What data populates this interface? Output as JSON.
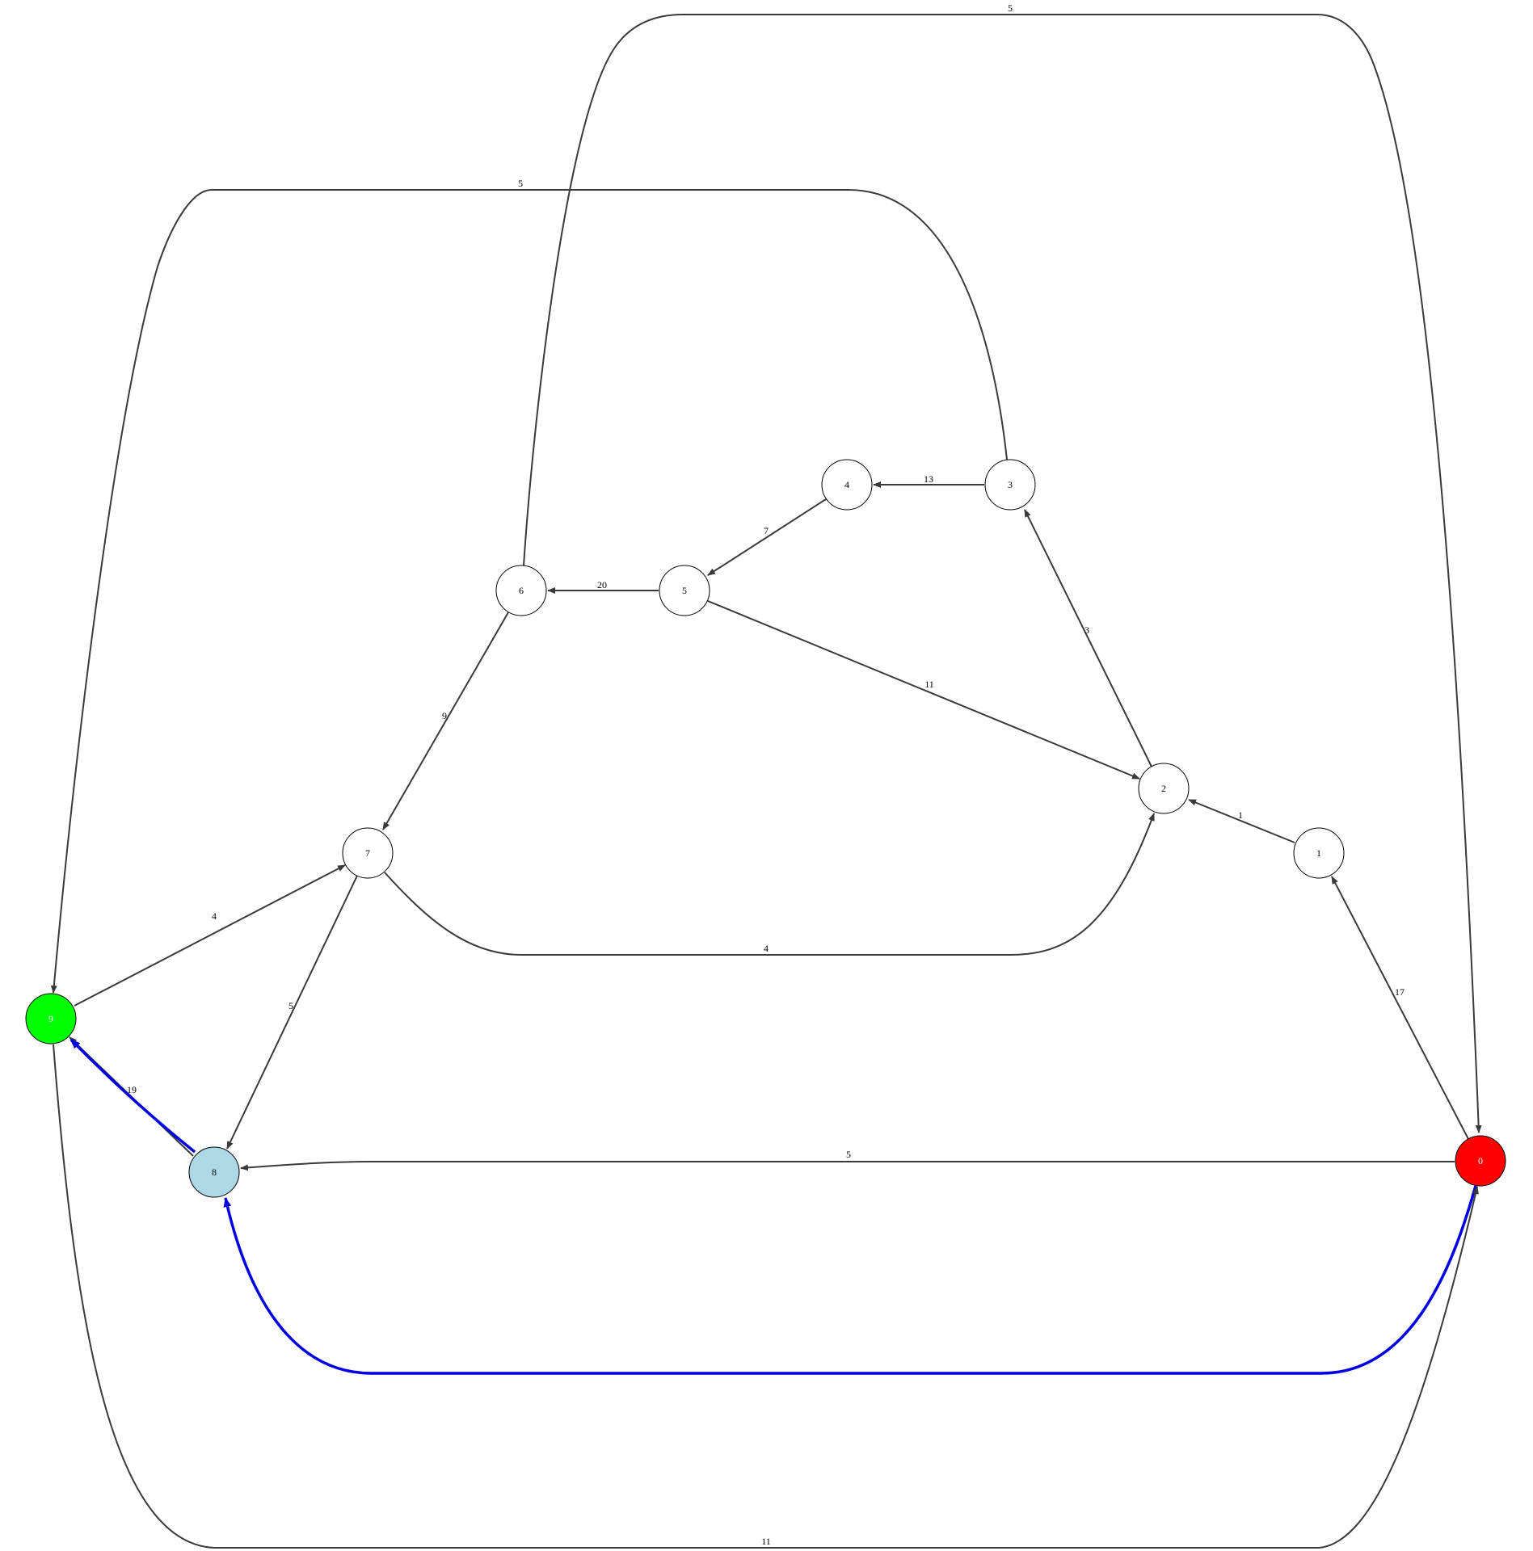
{
  "graph": {
    "colors": {
      "edge": "#3a3a3a",
      "highlight": "#0000e0",
      "start": "#ff0000",
      "goal": "#00ff00",
      "visited": "#add8e6",
      "default": "#ffffff"
    },
    "nodes": [
      {
        "id": "0",
        "label": "0",
        "role": "start"
      },
      {
        "id": "1",
        "label": "1",
        "role": "default"
      },
      {
        "id": "2",
        "label": "2",
        "role": "default"
      },
      {
        "id": "3",
        "label": "3",
        "role": "default"
      },
      {
        "id": "4",
        "label": "4",
        "role": "default"
      },
      {
        "id": "5",
        "label": "5",
        "role": "default"
      },
      {
        "id": "6",
        "label": "6",
        "role": "default"
      },
      {
        "id": "7",
        "label": "7",
        "role": "default"
      },
      {
        "id": "8",
        "label": "8",
        "role": "visited"
      },
      {
        "id": "9",
        "label": "9",
        "role": "goal"
      }
    ],
    "edges": [
      {
        "id": "e-6-0",
        "from": "6",
        "to": "0",
        "weight": "5"
      },
      {
        "id": "e-3-9",
        "from": "3",
        "to": "9",
        "weight": "5"
      },
      {
        "id": "e-3-4",
        "from": "3",
        "to": "4",
        "weight": "13"
      },
      {
        "id": "e-4-5",
        "from": "4",
        "to": "5",
        "weight": "7"
      },
      {
        "id": "e-5-6",
        "from": "5",
        "to": "6",
        "weight": "20"
      },
      {
        "id": "e-2-3",
        "from": "2",
        "to": "3",
        "weight": "3"
      },
      {
        "id": "e-5-2",
        "from": "5",
        "to": "2",
        "weight": "11"
      },
      {
        "id": "e-6-7",
        "from": "6",
        "to": "7",
        "weight": "9"
      },
      {
        "id": "e-1-2",
        "from": "1",
        "to": "2",
        "weight": "1"
      },
      {
        "id": "e-7-2",
        "from": "7",
        "to": "2",
        "weight": "4"
      },
      {
        "id": "e-9-7",
        "from": "9",
        "to": "7",
        "weight": "4"
      },
      {
        "id": "e-0-1",
        "from": "0",
        "to": "1",
        "weight": "17"
      },
      {
        "id": "e-7-8",
        "from": "7",
        "to": "8",
        "weight": "5"
      },
      {
        "id": "e-8-9",
        "from": "8",
        "to": "9",
        "weight": "19"
      },
      {
        "id": "e-8-9-path",
        "from": "8",
        "to": "9",
        "weight": "",
        "highlight": true
      },
      {
        "id": "e-0-8",
        "from": "0",
        "to": "8",
        "weight": "5"
      },
      {
        "id": "e-0-8-path",
        "from": "0",
        "to": "8",
        "weight": "",
        "highlight": true
      },
      {
        "id": "e-9-0",
        "from": "9",
        "to": "0",
        "weight": "11"
      }
    ]
  }
}
